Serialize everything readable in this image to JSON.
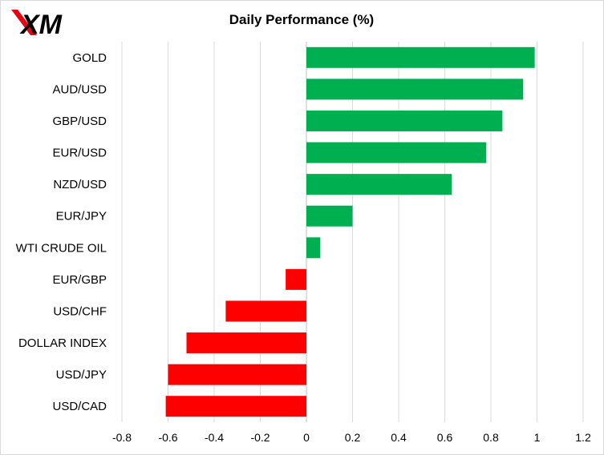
{
  "logo": {
    "text": "XM",
    "colors": {
      "slash": "#e30613",
      "letters": "#000000"
    }
  },
  "chart_data": {
    "type": "bar",
    "orientation": "horizontal",
    "title": "Daily Performance  (%)",
    "xlabel": "",
    "ylabel": "",
    "categories": [
      "GOLD",
      "AUD/USD",
      "GBP/USD",
      "EUR/USD",
      "NZD/USD",
      "EUR/JPY",
      "WTI CRUDE OIL",
      "EUR/GBP",
      "USD/CHF",
      "DOLLAR INDEX",
      "USD/JPY",
      "USD/CAD"
    ],
    "values": [
      0.99,
      0.94,
      0.85,
      0.78,
      0.63,
      0.2,
      0.06,
      -0.09,
      -0.35,
      -0.52,
      -0.6,
      -0.61
    ],
    "xlim": [
      -0.8,
      1.2
    ],
    "xticks": [
      -0.8,
      -0.6,
      -0.4,
      -0.2,
      0,
      0.2,
      0.4,
      0.6,
      0.8,
      1,
      1.2
    ],
    "xtick_labels": [
      "-0.8",
      "-0.6",
      "-0.4",
      "-0.2",
      "0",
      "0.2",
      "0.4",
      "0.6",
      "0.8",
      "1",
      "1.2"
    ],
    "grid": true,
    "grid_axis": "x",
    "legend": "none",
    "colors": {
      "positive": "#00b050",
      "negative": "#ff0000",
      "grid": "#d9d9d9",
      "axis": "#bfbfbf",
      "text": "#000000"
    }
  }
}
